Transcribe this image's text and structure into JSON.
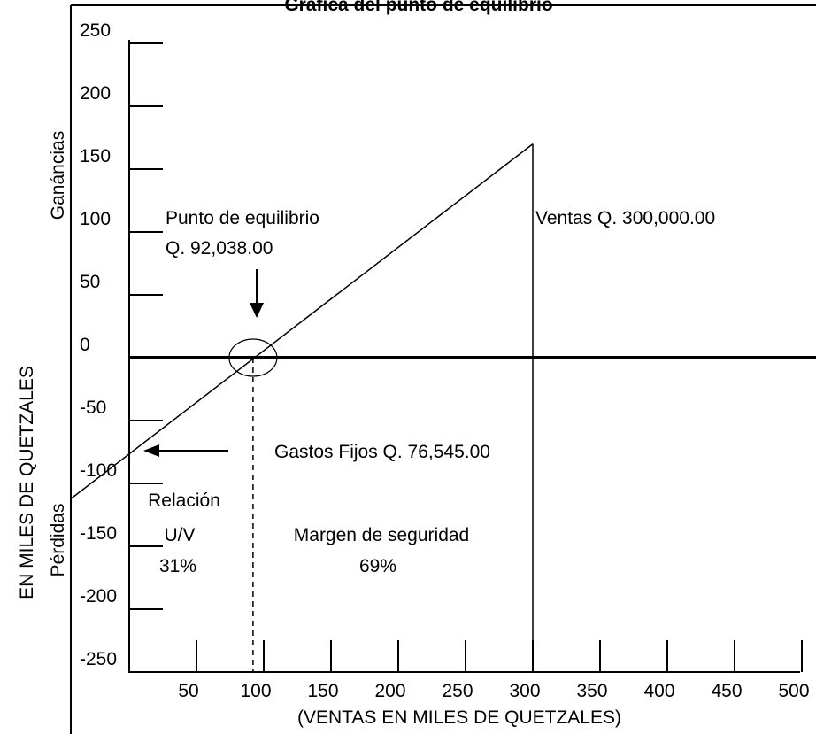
{
  "chart_data": {
    "type": "line",
    "title": "Gráfica del punto de equilibrio",
    "xlabel": "(VENTAS EN MILES DE QUETZALES)",
    "ylabel": "EN MILES DE QUETZALES",
    "ylabel_top": "Ganáncias",
    "ylabel_bottom": "Pérdidas",
    "x_ticks": [
      50,
      100,
      150,
      200,
      250,
      300,
      350,
      400,
      450,
      500
    ],
    "y_ticks": [
      250,
      200,
      150,
      100,
      50,
      0,
      -50,
      -100,
      -150,
      -200,
      -250
    ],
    "xlim": [
      0,
      520
    ],
    "ylim": [
      -250,
      250
    ],
    "grid": false,
    "series": [
      {
        "x": [
          0,
          92.038,
          300
        ],
        "y": [
          -76.545,
          0,
          170
        ]
      }
    ],
    "sales_line_x": 300,
    "break_even_x": 92.038,
    "annotations": {
      "break_even": [
        "Punto de equilibrio",
        "Q. 92,038.00"
      ],
      "sales": "Ventas Q. 300,000.00",
      "fixed_costs": "Gastos Fijos Q. 76,545.00",
      "ratio": [
        "Relación",
        "U/V",
        "31%"
      ],
      "safety_margin": [
        "Margen de seguridad",
        "69%"
      ]
    }
  }
}
